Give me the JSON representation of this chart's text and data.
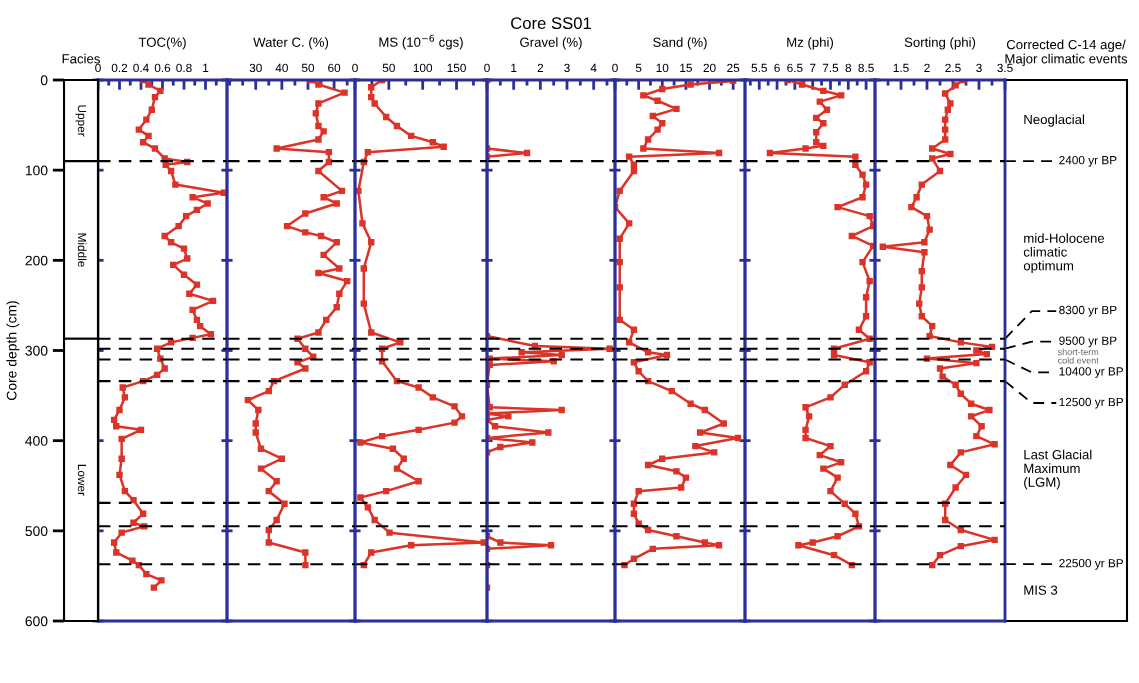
{
  "chart_data": [
    {
      "type": "bar",
      "stacked": true,
      "xlabel": "Facies",
      "ylabel": "Core depth (cm)",
      "ylim": [
        600,
        0
      ],
      "yticks": [
        0,
        100,
        200,
        300,
        400,
        500,
        600
      ],
      "tick_labels": "y",
      "categories": [
        null
      ],
      "series": [
        {
          "name": "Upper",
          "color": "#ffffff",
          "values": [
            90
          ]
        },
        {
          "name": "Middle",
          "color": "#ffffff",
          "values": [
            197
          ]
        },
        {
          "name": "Lower",
          "color": "#ffffff",
          "values": [
            313
          ]
        }
      ]
    },
    {
      "type": "line",
      "orientation": "horizontal",
      "xlabel": "TOC(%)",
      "color": "#dc3328",
      "marker": "square",
      "line_style": "solid",
      "tick_labels": "x",
      "xlim": [
        0,
        1.2
      ],
      "xticks": [
        0,
        0.2,
        0.4,
        0.6,
        0.8,
        1,
        {
          "value": 0.1,
          "label": null
        },
        {
          "value": 0.3,
          "label": null
        },
        {
          "value": 0.5,
          "label": null
        },
        {
          "value": 0.7,
          "label": null
        },
        {
          "value": 0.9,
          "label": null
        },
        {
          "value": 1.1,
          "label": null
        }
      ],
      "ylim": [
        600,
        0
      ],
      "yticks": [
        0,
        100,
        200,
        300,
        400,
        500,
        600
      ],
      "x": [
        0,
        5,
        12,
        19,
        33,
        44,
        55,
        62,
        69,
        76,
        87,
        91,
        94,
        101,
        116,
        125,
        130,
        137,
        144,
        151,
        162,
        173,
        180,
        187,
        198,
        205,
        216,
        227,
        237,
        245,
        255,
        266,
        273,
        282,
        286,
        291,
        298,
        309,
        320,
        327,
        334,
        341,
        352,
        366,
        377,
        384,
        388,
        398,
        420,
        438,
        456,
        466,
        481,
        491,
        495,
        502,
        513,
        524,
        533,
        538,
        548,
        555,
        563
      ],
      "values": [
        0.42,
        0.47,
        0.58,
        0.53,
        0.5,
        0.45,
        0.38,
        0.47,
        0.42,
        0.53,
        0.62,
        0.83,
        0.63,
        0.68,
        0.72,
        1.17,
        0.88,
        1.02,
        0.92,
        0.82,
        0.75,
        0.62,
        0.68,
        0.8,
        0.83,
        0.7,
        0.8,
        0.92,
        0.85,
        1.07,
        0.88,
        0.92,
        0.95,
        1.05,
        0.88,
        0.68,
        0.55,
        0.58,
        0.62,
        0.55,
        0.42,
        0.23,
        0.25,
        0.2,
        0.15,
        0.17,
        0.4,
        0.22,
        0.22,
        0.2,
        0.25,
        0.33,
        0.42,
        0.33,
        0.43,
        0.22,
        0.15,
        0.17,
        0.32,
        0.38,
        0.45,
        0.59,
        0.52
      ],
      "ref_lines": [
        {
          "axis": "y",
          "value": 90
        },
        {
          "axis": "y",
          "value": 287
        },
        {
          "axis": "y",
          "value": 298
        },
        {
          "axis": "y",
          "value": 310
        },
        {
          "axis": "y",
          "value": 334
        },
        {
          "axis": "y",
          "value": 469
        },
        {
          "axis": "y",
          "value": 495
        },
        {
          "axis": "y",
          "value": 537
        }
      ]
    },
    {
      "type": "line",
      "orientation": "horizontal",
      "xlabel": "Water C. (%)",
      "color": "#dc3328",
      "marker": "square",
      "line_style": "solid",
      "tick_labels": "x",
      "xlim": [
        19,
        68
      ],
      "xticks": [
        30,
        40,
        50,
        60,
        {
          "value": 20,
          "label": null
        },
        {
          "value": 25,
          "label": null
        },
        {
          "value": 35,
          "label": null
        },
        {
          "value": 45,
          "label": null
        },
        {
          "value": 55,
          "label": null
        },
        {
          "value": 65,
          "label": null
        }
      ],
      "ylim": [
        600,
        0
      ],
      "yticks": [
        0,
        100,
        200,
        300,
        400,
        500,
        600
      ],
      "x": [
        0,
        5,
        14,
        26,
        37,
        51,
        57,
        66,
        76,
        80,
        91,
        101,
        123,
        130,
        137,
        148,
        162,
        169,
        173,
        180,
        194,
        209,
        214,
        223,
        237,
        252,
        266,
        280,
        287,
        298,
        307,
        313,
        320,
        334,
        345,
        355,
        366,
        381,
        391,
        409,
        420,
        431,
        445,
        456,
        470,
        488,
        499,
        513,
        524,
        538
      ],
      "values": [
        51,
        54,
        64,
        54,
        53,
        54,
        56,
        54,
        38,
        58,
        58,
        54,
        63,
        56,
        61,
        49,
        42,
        49,
        55,
        61,
        56,
        62,
        54,
        65,
        62,
        61,
        57,
        54,
        46,
        49,
        52,
        46,
        49,
        37,
        35,
        27,
        31,
        30,
        30,
        32,
        40,
        32,
        38,
        35,
        41,
        38,
        35,
        35,
        49,
        49
      ],
      "ref_lines": [
        {
          "axis": "y",
          "value": 90
        },
        {
          "axis": "y",
          "value": 287
        },
        {
          "axis": "y",
          "value": 298
        },
        {
          "axis": "y",
          "value": 310
        },
        {
          "axis": "y",
          "value": 334
        },
        {
          "axis": "y",
          "value": 469
        },
        {
          "axis": "y",
          "value": 495
        },
        {
          "axis": "y",
          "value": 537
        }
      ]
    },
    {
      "type": "line",
      "orientation": "horizontal",
      "xlabel": "MS (10$^{−6}$ cgs)",
      "color": "#dc3328",
      "marker": "square",
      "line_style": "solid",
      "tick_labels": "x",
      "xlim": [
        0,
        195
      ],
      "xticks": [
        0,
        50,
        100,
        150,
        {
          "value": 25,
          "label": null
        },
        {
          "value": 75,
          "label": null
        },
        {
          "value": 125,
          "label": null
        },
        {
          "value": 175,
          "label": null
        }
      ],
      "ylim": [
        600,
        0
      ],
      "yticks": [
        0,
        100,
        200,
        300,
        400,
        500,
        600
      ],
      "x": [
        0,
        8,
        19,
        26,
        41,
        51,
        62,
        69,
        74,
        80,
        91,
        123,
        159,
        180,
        209,
        248,
        280,
        291,
        298,
        312,
        334,
        341,
        352,
        362,
        373,
        380,
        388,
        395,
        402,
        409,
        420,
        431,
        445,
        456,
        463,
        474,
        488,
        502,
        513,
        516,
        524,
        538
      ],
      "values": [
        40,
        24,
        24,
        29,
        46,
        62,
        83,
        115,
        131,
        19,
        13,
        5,
        11,
        24,
        13,
        13,
        24,
        67,
        40,
        40,
        62,
        94,
        115,
        147,
        158,
        147,
        94,
        40,
        8,
        56,
        72,
        62,
        94,
        46,
        8,
        19,
        29,
        51,
        190,
        83,
        24,
        13
      ],
      "ref_lines": [
        {
          "axis": "y",
          "value": 90
        },
        {
          "axis": "y",
          "value": 287
        },
        {
          "axis": "y",
          "value": 298
        },
        {
          "axis": "y",
          "value": 310
        },
        {
          "axis": "y",
          "value": 334
        },
        {
          "axis": "y",
          "value": 469
        },
        {
          "axis": "y",
          "value": 495
        },
        {
          "axis": "y",
          "value": 537
        }
      ]
    },
    {
      "type": "line",
      "orientation": "horizontal",
      "title": "Core SS01",
      "xlabel": "Gravel (%)",
      "color": "#dc3328",
      "marker": "square",
      "line_style": "solid",
      "tick_labels": "x",
      "xlim": [
        0,
        4.8
      ],
      "xticks": [
        0,
        1,
        2,
        3,
        4,
        {
          "value": 0.5,
          "label": null
        },
        {
          "value": 1.5,
          "label": null
        },
        {
          "value": 2.5,
          "label": null
        },
        {
          "value": 3.5,
          "label": null
        },
        {
          "value": 4.5,
          "label": null
        }
      ],
      "ylim": [
        600,
        0
      ],
      "yticks": [
        0,
        100,
        200,
        300,
        400,
        500,
        600
      ],
      "x": [
        0,
        76,
        81,
        85,
        284,
        295,
        298,
        302,
        305,
        309,
        312,
        316,
        338,
        363,
        366,
        370,
        373,
        377,
        384,
        391,
        397,
        402,
        407,
        413,
        506,
        513,
        516,
        520,
        538,
        563
      ],
      "values": [
        0,
        0,
        1.5,
        0,
        0,
        1.8,
        4.6,
        1.3,
        2.8,
        0.1,
        2.5,
        0.1,
        0,
        0.1,
        2.8,
        0,
        0.8,
        0,
        0.3,
        2.3,
        0,
        1.7,
        0.5,
        0,
        0,
        0.5,
        2.4,
        0,
        0,
        0
      ],
      "ref_lines": [
        {
          "axis": "y",
          "value": 90
        },
        {
          "axis": "y",
          "value": 287
        },
        {
          "axis": "y",
          "value": 298
        },
        {
          "axis": "y",
          "value": 310
        },
        {
          "axis": "y",
          "value": 334
        },
        {
          "axis": "y",
          "value": 469
        },
        {
          "axis": "y",
          "value": 495
        },
        {
          "axis": "y",
          "value": 537
        }
      ]
    },
    {
      "type": "line",
      "orientation": "horizontal",
      "xlabel": "Sand (%)",
      "color": "#dc3328",
      "marker": "square",
      "line_style": "solid",
      "tick_labels": "x",
      "xlim": [
        0,
        27.5
      ],
      "xticks": [
        0,
        5,
        10,
        15,
        20,
        25,
        {
          "value": 2.5,
          "label": null
        },
        {
          "value": 7.5,
          "label": null
        },
        {
          "value": 12.5,
          "label": null
        },
        {
          "value": 17.5,
          "label": null
        },
        {
          "value": 22.5,
          "label": null
        }
      ],
      "ylim": [
        600,
        0
      ],
      "yticks": [
        0,
        100,
        200,
        300,
        400,
        500,
        600
      ],
      "x": [
        1,
        5,
        10,
        17,
        23,
        32,
        40,
        48,
        55,
        66,
        76,
        81,
        85,
        94,
        101,
        123,
        141,
        159,
        176,
        202,
        230,
        266,
        277,
        291,
        302,
        305,
        313,
        323,
        334,
        345,
        359,
        366,
        381,
        391,
        397,
        406,
        413,
        420,
        427,
        434,
        441,
        452,
        456,
        470,
        481,
        492,
        499,
        506,
        513,
        516,
        520,
        531,
        538
      ],
      "values": [
        25,
        16,
        10,
        6,
        9,
        13,
        8,
        10,
        9,
        7,
        6,
        22,
        3,
        4,
        4,
        1,
        0,
        3,
        1,
        1,
        1,
        1,
        4,
        3,
        7,
        11,
        4,
        5,
        7,
        12,
        16,
        19,
        23,
        18,
        26,
        17,
        21,
        10,
        7,
        13,
        15,
        14,
        5,
        4,
        4,
        5,
        7,
        13,
        19,
        22,
        8,
        4,
        2
      ],
      "ref_lines": [
        {
          "axis": "y",
          "value": 90
        },
        {
          "axis": "y",
          "value": 287
        },
        {
          "axis": "y",
          "value": 298
        },
        {
          "axis": "y",
          "value": 310
        },
        {
          "axis": "y",
          "value": 334
        },
        {
          "axis": "y",
          "value": 469
        },
        {
          "axis": "y",
          "value": 495
        },
        {
          "axis": "y",
          "value": 537
        }
      ]
    },
    {
      "type": "line",
      "orientation": "horizontal",
      "xlabel": "Mz (phi)",
      "color": "#dc3328",
      "marker": "square",
      "line_style": "solid",
      "tick_labels": "x",
      "xlim": [
        5.1,
        8.75
      ],
      "xticks": [
        5.5,
        6,
        6.5,
        7,
        7.5,
        8,
        8.5,
        {
          "value": 5.25,
          "label": null
        },
        {
          "value": 5.75,
          "label": null
        },
        {
          "value": 6.25,
          "label": null
        },
        {
          "value": 6.75,
          "label": null
        },
        {
          "value": 7.25,
          "label": null
        },
        {
          "value": 7.75,
          "label": null
        },
        {
          "value": 8.25,
          "label": null
        }
      ],
      "ylim": [
        600,
        0
      ],
      "yticks": [
        0,
        100,
        200,
        300,
        400,
        500,
        600
      ],
      "x": [
        0,
        5,
        12,
        17,
        24,
        33,
        42,
        48,
        58,
        69,
        73,
        76,
        81,
        85,
        94,
        105,
        116,
        130,
        141,
        151,
        162,
        173,
        184,
        202,
        223,
        241,
        262,
        277,
        287,
        298,
        305,
        313,
        323,
        338,
        352,
        363,
        373,
        388,
        397,
        406,
        416,
        424,
        431,
        441,
        456,
        470,
        481,
        495,
        506,
        513,
        516,
        527,
        538
      ],
      "values": [
        6.3,
        6.7,
        7.3,
        7.8,
        7.2,
        7.4,
        7.1,
        7.3,
        7.1,
        7.1,
        7.3,
        6.8,
        5.8,
        8.2,
        8.2,
        8.4,
        8.5,
        8.4,
        7.7,
        8.6,
        8.7,
        8.1,
        8.7,
        8.4,
        8.6,
        8.5,
        8.5,
        8.3,
        8.6,
        7.6,
        7.6,
        8.6,
        8.5,
        7.9,
        7.5,
        6.8,
        6.9,
        6.8,
        6.8,
        7.5,
        7.2,
        7.8,
        7.3,
        7.7,
        7.5,
        7.9,
        8.2,
        8.3,
        7.7,
        7.0,
        6.6,
        7.6,
        8.1
      ],
      "ref_lines": [
        {
          "axis": "y",
          "value": 90
        },
        {
          "axis": "y",
          "value": 287
        },
        {
          "axis": "y",
          "value": 298
        },
        {
          "axis": "y",
          "value": 310
        },
        {
          "axis": "y",
          "value": 334
        },
        {
          "axis": "y",
          "value": 469
        },
        {
          "axis": "y",
          "value": 495
        },
        {
          "axis": "y",
          "value": 537
        }
      ]
    },
    {
      "type": "line",
      "orientation": "horizontal",
      "xlabel": "Sorting (phi)",
      "color": "#dc3328",
      "marker": "square",
      "line_style": "solid",
      "tick_labels": "x",
      "xlim": [
        1,
        3.5
      ],
      "xticks": [
        1.5,
        2,
        2.5,
        3,
        3.5,
        {
          "value": 1.25,
          "label": null
        },
        {
          "value": 1.75,
          "label": null
        },
        {
          "value": 2.25,
          "label": null
        },
        {
          "value": 2.75,
          "label": null
        },
        {
          "value": 3.25,
          "label": null
        }
      ],
      "ylim": [
        600,
        0
      ],
      "yticks": [
        0,
        100,
        200,
        300,
        400,
        500,
        600
      ],
      "x": [
        0,
        6,
        15,
        26,
        33,
        44,
        55,
        66,
        76,
        82,
        87,
        101,
        116,
        130,
        141,
        151,
        166,
        180,
        185,
        191,
        212,
        230,
        248,
        262,
        273,
        284,
        291,
        296,
        300,
        304,
        309,
        314,
        320,
        329,
        338,
        348,
        359,
        366,
        373,
        384,
        395,
        404,
        413,
        427,
        438,
        452,
        470,
        488,
        499,
        510,
        517,
        527,
        538
      ],
      "values": [
        2.7,
        2.55,
        2.35,
        2.45,
        2.4,
        2.35,
        2.35,
        2.35,
        2.1,
        2.45,
        2.1,
        2.25,
        1.9,
        1.8,
        1.7,
        2.0,
        2.05,
        1.95,
        1.15,
        1.95,
        1.9,
        1.9,
        1.85,
        1.9,
        2.1,
        2.05,
        2.65,
        3.25,
        2.95,
        3.15,
        2.0,
        2.95,
        2.25,
        2.3,
        2.55,
        2.65,
        2.85,
        3.2,
        2.85,
        3.05,
        2.95,
        3.3,
        2.65,
        2.45,
        2.75,
        2.55,
        2.35,
        2.35,
        2.65,
        3.3,
        2.65,
        2.25,
        2.1
      ],
      "ref_lines": [
        {
          "axis": "y",
          "value": 90,
          "label": "2400 yr BP"
        },
        {
          "axis": "y",
          "value": 287,
          "label": "8300 yr BP"
        },
        {
          "axis": "y",
          "value": 298,
          "label": "9500 yr BP"
        },
        {
          "axis": "y",
          "value": 310,
          "label": "10400 yr BP"
        },
        {
          "axis": "y",
          "value": 334,
          "label": "12500 yr BP"
        },
        {
          "axis": "y",
          "value": 469
        },
        {
          "axis": "y",
          "value": 495
        },
        {
          "axis": "y",
          "value": 537,
          "label": "22500 yr BP"
        }
      ]
    },
    {
      "type": "other",
      "xlabel": "Corrected C-14 age/\nMajor climatic events",
      "annotations": [
        "Neoglacial",
        "mid-Holocene\nclimatic\noptimum",
        "short-term\ncold event",
        "Last Glacial\nMaximum\n(LGM)",
        "MIS 3"
      ]
    }
  ]
}
